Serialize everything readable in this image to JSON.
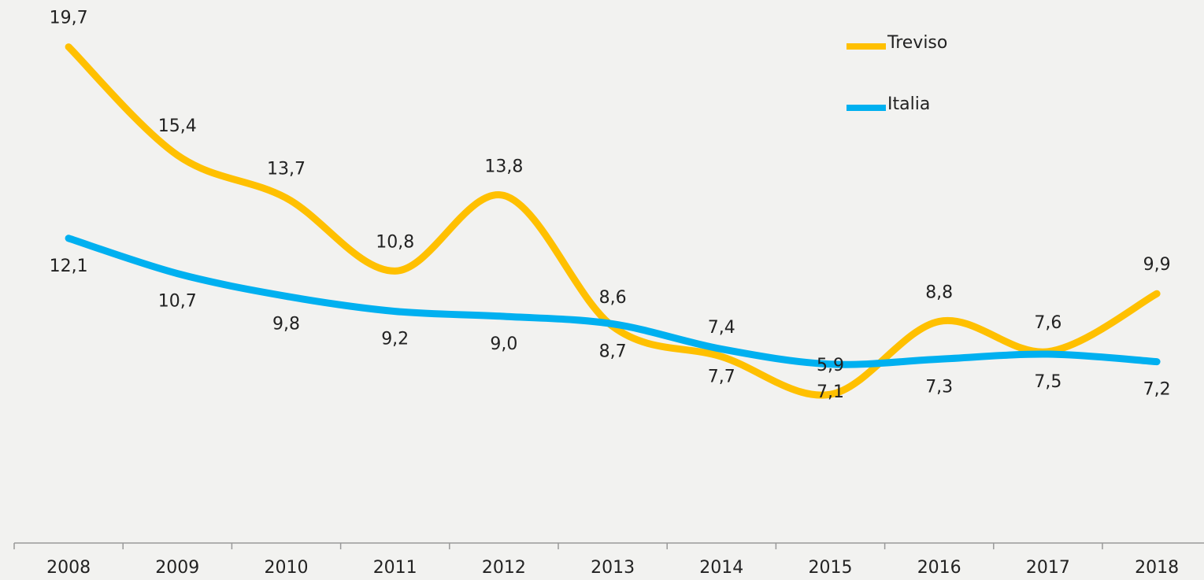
{
  "chart_data": {
    "type": "line",
    "categories": [
      "2008",
      "2009",
      "2010",
      "2011",
      "2012",
      "2013",
      "2014",
      "2015",
      "2016",
      "2017",
      "2018"
    ],
    "series": [
      {
        "name": "Treviso",
        "color": "#ffc000",
        "values": [
          19.7,
          15.4,
          13.7,
          10.8,
          13.8,
          8.6,
          7.4,
          5.9,
          8.8,
          7.6,
          9.9
        ],
        "value_labels": [
          "19,7",
          "15,4",
          "13,7",
          "10,8",
          "13,8",
          "8,6",
          "7,4",
          "5,9",
          "8,8",
          "7,6",
          "9,9"
        ]
      },
      {
        "name": "Italia",
        "color": "#00b0f0",
        "values": [
          12.1,
          10.7,
          9.8,
          9.2,
          9.0,
          8.7,
          7.7,
          7.1,
          7.3,
          7.5,
          7.2
        ],
        "value_labels": [
          "12,1",
          "10,7",
          "9,8",
          "9,2",
          "9,0",
          "8,7",
          "7,7",
          "7,1",
          "7,3",
          "7,5",
          "7,2"
        ]
      }
    ],
    "ylim": [
      0,
      21
    ],
    "legend": "top-right"
  }
}
